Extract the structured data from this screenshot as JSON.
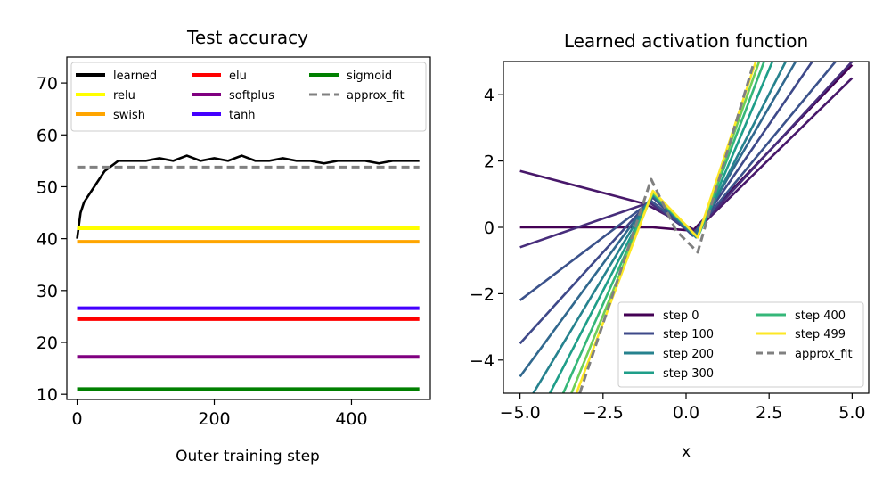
{
  "chart_data": [
    {
      "type": "line",
      "title": "Test accuracy",
      "xlabel": "Outer training step",
      "ylabel": "",
      "xlim": [
        -15,
        515
      ],
      "ylim": [
        9,
        75
      ],
      "xticks": [
        0,
        200,
        400
      ],
      "yticks": [
        10,
        20,
        30,
        40,
        50,
        60,
        70
      ],
      "legend": {
        "placement": "top",
        "columns": 3
      },
      "grid": false,
      "series": [
        {
          "name": "learned",
          "color": "#000000",
          "style": "solid",
          "x": [
            0,
            5,
            10,
            15,
            20,
            30,
            40,
            50,
            60,
            80,
            100,
            120,
            140,
            160,
            180,
            200,
            220,
            240,
            260,
            280,
            300,
            320,
            340,
            360,
            380,
            400,
            420,
            440,
            460,
            480,
            499
          ],
          "y": [
            40,
            45,
            47,
            48,
            49,
            51,
            53,
            54,
            55,
            55,
            55,
            55.5,
            55,
            56,
            55,
            55.5,
            55,
            56,
            55,
            55,
            55.5,
            55,
            55,
            54.5,
            55,
            55,
            55,
            54.5,
            55,
            55,
            55
          ]
        },
        {
          "name": "relu",
          "color": "#ffff00",
          "style": "solid",
          "x": [
            0,
            499
          ],
          "y": [
            42,
            42
          ]
        },
        {
          "name": "swish",
          "color": "#ffa500",
          "style": "solid",
          "x": [
            0,
            499
          ],
          "y": [
            39.4,
            39.4
          ]
        },
        {
          "name": "elu",
          "color": "#ff0000",
          "style": "solid",
          "x": [
            0,
            499
          ],
          "y": [
            24.5,
            24.5
          ]
        },
        {
          "name": "softplus",
          "color": "#800080",
          "style": "solid",
          "x": [
            0,
            499
          ],
          "y": [
            17.2,
            17.2
          ]
        },
        {
          "name": "tanh",
          "color": "#4400ff",
          "style": "solid",
          "x": [
            0,
            499
          ],
          "y": [
            26.6,
            26.6
          ]
        },
        {
          "name": "sigmoid",
          "color": "#008000",
          "style": "solid",
          "x": [
            0,
            499
          ],
          "y": [
            11,
            11
          ]
        },
        {
          "name": "approx_fit",
          "color": "#808080",
          "style": "dashed",
          "x": [
            0,
            499
          ],
          "y": [
            53.8,
            53.8
          ]
        }
      ],
      "legend_order": [
        "learned",
        "relu",
        "swish",
        "elu",
        "softplus",
        "tanh",
        "sigmoid",
        "approx_fit"
      ]
    },
    {
      "type": "line",
      "title": "Learned activation function",
      "xlabel": "x",
      "ylabel": "",
      "xlim": [
        -5.5,
        5.5
      ],
      "ylim": [
        -5,
        5
      ],
      "xticks": [
        -5.0,
        -2.5,
        0.0,
        2.5,
        5.0
      ],
      "xtick_labels": [
        "−5.0",
        "−2.5",
        "0.0",
        "2.5",
        "5.0"
      ],
      "yticks": [
        -4,
        -2,
        0,
        2,
        4
      ],
      "ytick_labels": [
        "−4",
        "−2",
        "0",
        "2",
        "4"
      ],
      "legend": {
        "placement": "lower-right",
        "columns": 2
      },
      "grid": false,
      "series": [
        {
          "name": "step 0",
          "color": "#440154",
          "style": "solid",
          "x": [
            -5,
            -1,
            0.2,
            5
          ],
          "y": [
            0,
            0,
            -0.1,
            4.9
          ]
        },
        {
          "color": "#48186a",
          "style": "solid",
          "x": [
            -5,
            -1.2,
            0,
            0.3,
            5
          ],
          "y": [
            1.7,
            0.7,
            0.05,
            -0.1,
            4.5
          ]
        },
        {
          "color": "#472d7b",
          "style": "solid",
          "x": [
            -5,
            -1.1,
            0.2,
            5
          ],
          "y": [
            -0.6,
            0.75,
            -0.2,
            5.0
          ]
        },
        {
          "color": "#3b528b",
          "style": "solid",
          "x": [
            -5,
            -1.05,
            0.2,
            4.5
          ],
          "y": [
            -2.2,
            0.8,
            -0.2,
            5.0
          ]
        },
        {
          "name": "step 100",
          "color": "#3e4989",
          "style": "solid",
          "x": [
            -5,
            -1,
            0.2,
            3.8
          ],
          "y": [
            -3.5,
            0.9,
            -0.25,
            5.0
          ]
        },
        {
          "color": "#31688e",
          "style": "solid",
          "x": [
            -5,
            -1,
            0.25,
            3.3
          ],
          "y": [
            -4.5,
            0.95,
            -0.25,
            5.0
          ]
        },
        {
          "name": "step 200",
          "color": "#26828e",
          "style": "solid",
          "x": [
            -4.6,
            -1,
            0.3,
            3.0
          ],
          "y": [
            -5,
            1.0,
            -0.3,
            5.0
          ]
        },
        {
          "name": "step 300",
          "color": "#1f9e89",
          "style": "solid",
          "x": [
            -4.1,
            -1,
            0.35,
            2.6
          ],
          "y": [
            -5,
            1.0,
            -0.3,
            5.0
          ]
        },
        {
          "name": "step 400",
          "color": "#35b779",
          "style": "solid",
          "x": [
            -3.7,
            -1,
            0.35,
            2.35
          ],
          "y": [
            -5,
            1.05,
            -0.3,
            5.0
          ]
        },
        {
          "color": "#6ece58",
          "style": "solid",
          "x": [
            -3.45,
            -1,
            0.35,
            2.2
          ],
          "y": [
            -5,
            1.05,
            -0.3,
            5.0
          ]
        },
        {
          "name": "step 499",
          "color": "#fde725",
          "style": "solid",
          "x": [
            -3.3,
            -1,
            0.35,
            2.1
          ],
          "y": [
            -5,
            1.1,
            -0.3,
            5.0
          ]
        },
        {
          "name": "approx_fit",
          "color": "#808080",
          "style": "dashed",
          "x": [
            -3.2,
            -1.05,
            -0.3,
            0.35,
            0.8,
            2.05
          ],
          "y": [
            -5,
            1.45,
            -0.1,
            -0.75,
            0.8,
            5.0
          ]
        }
      ],
      "legend_order": [
        "step 0",
        "step 100",
        "step 200",
        "step 300",
        "step 400",
        "step 499",
        "approx_fit"
      ]
    }
  ]
}
